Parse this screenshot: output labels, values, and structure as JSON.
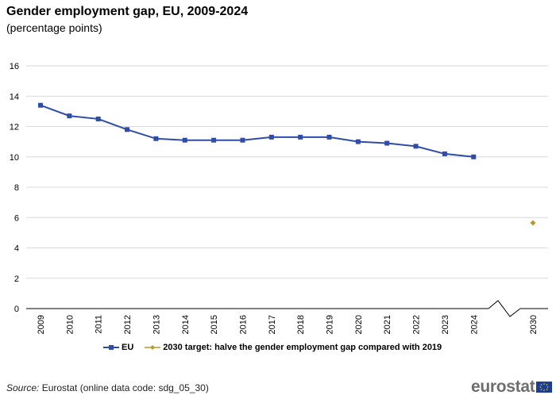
{
  "header": {
    "title": "Gender employment gap, EU, 2009-2024",
    "subtitle": "(percentage points)"
  },
  "footer": {
    "source_label": "Source:",
    "source_text": "Eurostat (online data code: sdg_05_30)",
    "logo_text": "eurostat"
  },
  "colors": {
    "eu_series": "#2f4ca8",
    "target": "#b89a2a",
    "grid": "#d9d9d9",
    "axis": "#000000"
  },
  "chart_data": {
    "type": "line",
    "title": "Gender employment gap, EU, 2009-2024",
    "subtitle": "(percentage points)",
    "xlabel": "",
    "ylabel": "",
    "ylim": [
      0,
      16
    ],
    "yticks": [
      0,
      2,
      4,
      6,
      8,
      10,
      12,
      14,
      16
    ],
    "grid": true,
    "legend_position": "bottom",
    "axis_break": "between 2024 and 2030",
    "x_tick_labels": [
      "2009",
      "2010",
      "2011",
      "2012",
      "2013",
      "2014",
      "2015",
      "2016",
      "2017",
      "2018",
      "2019",
      "2020",
      "2021",
      "2022",
      "2023",
      "2024",
      "2030"
    ],
    "series": [
      {
        "name": "EU",
        "marker": "square",
        "x": [
          "2009",
          "2010",
          "2011",
          "2012",
          "2013",
          "2014",
          "2015",
          "2016",
          "2017",
          "2018",
          "2019",
          "2020",
          "2021",
          "2022",
          "2023",
          "2024"
        ],
        "values": [
          13.4,
          12.7,
          12.5,
          11.8,
          11.2,
          11.1,
          11.1,
          11.1,
          11.3,
          11.3,
          11.3,
          11.0,
          10.9,
          10.7,
          10.2,
          10.0
        ]
      },
      {
        "name": "2030 target: halve the gender employment gap compared with 2019",
        "marker": "diamond",
        "x": [
          "2030"
        ],
        "values": [
          5.65
        ]
      }
    ]
  }
}
